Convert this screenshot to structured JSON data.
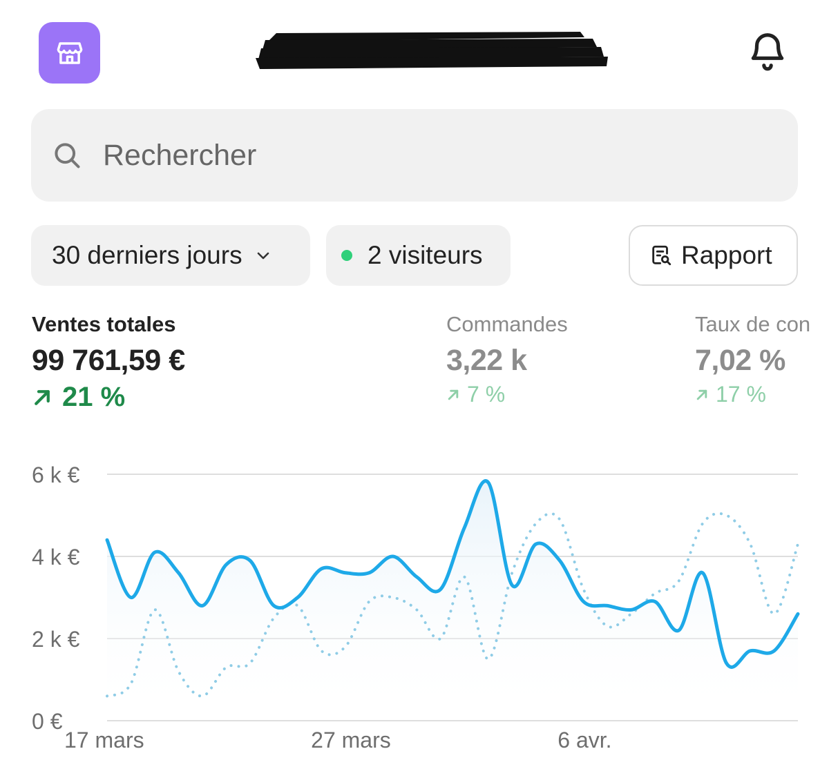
{
  "header": {
    "store_icon": "store-icon",
    "bell_icon": "bell-icon",
    "accent": "#9b74f7"
  },
  "search": {
    "placeholder": "Rechercher",
    "icon": "search-icon"
  },
  "filters": {
    "period_label": "30 derniers jours",
    "visitors_label": "2 visiteurs",
    "visitors_dot_color": "#2fd07a",
    "report_label": "Rapport"
  },
  "metrics": [
    {
      "label": "Ventes totales",
      "value": "99 761,59 €",
      "delta": "21 %"
    },
    {
      "label": "Commandes",
      "value": "3,22 k",
      "delta": "7 %"
    },
    {
      "label": "Taux de con",
      "value": "7,02 %",
      "delta": "17 %"
    }
  ],
  "chart_data": {
    "type": "line",
    "y_tick_labels": [
      "0 €",
      "2 k €",
      "4 k €",
      "6 k €"
    ],
    "ylim": [
      0,
      6000
    ],
    "x_tick_labels": [
      "17 mars",
      "27 mars",
      "6 avr."
    ],
    "x_tick_positions": [
      0,
      10,
      20
    ],
    "xlim": [
      0,
      28
    ],
    "grid": true,
    "series": [
      {
        "style": "solid",
        "color": "#1ea9e8",
        "values": [
          4400,
          3000,
          4100,
          3600,
          2800,
          3800,
          3900,
          2800,
          3000,
          3700,
          3600,
          3600,
          4000,
          3500,
          3200,
          4700,
          5800,
          3300,
          4300,
          3900,
          2900,
          2800,
          2700,
          2900,
          2200,
          3600,
          1400,
          1700,
          1700,
          2600
        ]
      },
      {
        "style": "dotted",
        "color": "#8fcce6",
        "values": [
          600,
          900,
          2700,
          1200,
          600,
          1300,
          1400,
          2500,
          2800,
          1700,
          1800,
          2900,
          3000,
          2700,
          2000,
          3500,
          1500,
          3600,
          4800,
          4900,
          3200,
          2300,
          2600,
          3100,
          3400,
          4800,
          5000,
          4300,
          2600,
          4300
        ]
      }
    ]
  }
}
